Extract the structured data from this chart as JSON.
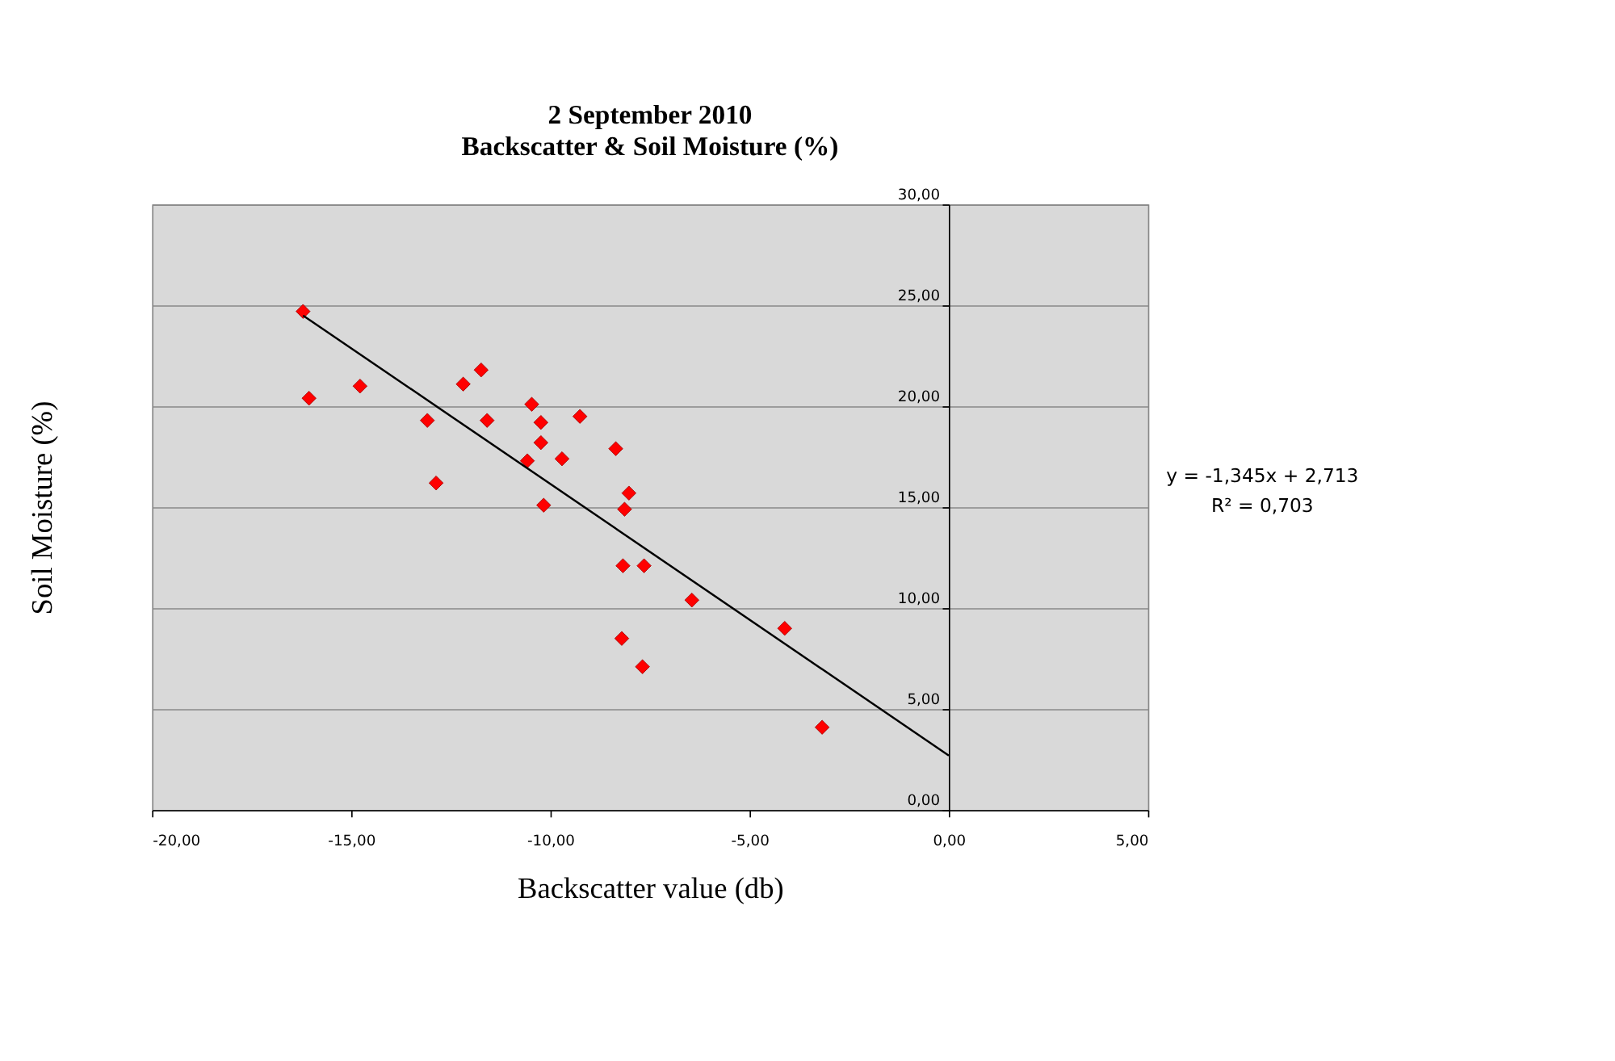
{
  "chart_data": {
    "type": "scatter",
    "title": "2 September 2010",
    "subtitle": "Backscatter & Soil Moisture (%)",
    "xlabel": "Backscatter value (db)",
    "ylabel": "Soil Moisture  (%)",
    "annotations": [
      "y = -1,345x + 2,713",
      "R² = 0,703"
    ],
    "series": [
      {
        "color": "#ff0000",
        "marker": "diamond",
        "x": [
          -16.21,
          -16.06,
          -14.78,
          -13.09,
          -12.87,
          -12.19,
          -11.74,
          -11.59,
          -10.47,
          -10.24,
          -10.24,
          -10.58,
          -10.17,
          -9.71,
          -9.26,
          -8.36,
          -8.03,
          -8.14,
          -8.18,
          -7.65,
          -8.21,
          -7.69,
          -6.45,
          -4.12,
          -3.18
        ],
        "values": [
          24.7,
          20.4,
          21.0,
          19.3,
          16.2,
          21.1,
          21.8,
          19.3,
          20.1,
          19.2,
          18.2,
          17.3,
          15.1,
          17.4,
          19.5,
          17.9,
          15.7,
          14.9,
          12.1,
          12.1,
          8.5,
          7.1,
          10.4,
          9.0,
          4.1
        ]
      },
      {
        "type": "line",
        "color": "#000000",
        "x": [
          -16.21,
          0
        ],
        "values": [
          24.5,
          2.7
        ]
      }
    ],
    "xlim": [
      -20,
      5
    ],
    "xticks": [
      {
        "value": -20,
        "label": "-20,00"
      },
      {
        "value": -15,
        "label": "-15,00"
      },
      {
        "value": -10,
        "label": "-10,00"
      },
      {
        "value": -5,
        "label": "-5,00"
      },
      {
        "value": 0,
        "label": "0,00"
      },
      {
        "value": 5,
        "label": "5,00"
      }
    ],
    "ylim": [
      0,
      30
    ],
    "yticks": [
      {
        "value": 0,
        "label": "0,00"
      },
      {
        "value": 5,
        "label": "5,00"
      },
      {
        "value": 10,
        "label": "10,00"
      },
      {
        "value": 15,
        "label": "15,00"
      },
      {
        "value": 20,
        "label": "20,00"
      },
      {
        "value": 25,
        "label": "25,00"
      },
      {
        "value": 30,
        "label": "30,00"
      }
    ],
    "grid": "y"
  }
}
